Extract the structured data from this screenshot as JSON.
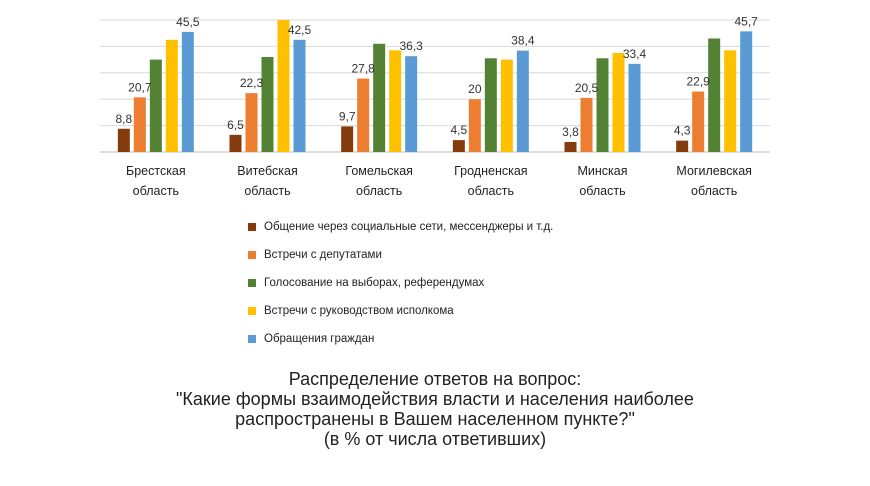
{
  "chart_data": {
    "type": "bar",
    "categories": [
      [
        "Брестская",
        "область"
      ],
      [
        "Витебская",
        "область"
      ],
      [
        "Гомельская",
        "область"
      ],
      [
        "Гродненская",
        "область"
      ],
      [
        "Минская",
        "область"
      ],
      [
        "Могилевская",
        "область"
      ]
    ],
    "series": [
      {
        "name": "Общение через социальные сети, мессенджеры и т.д.",
        "color": "#843c0c",
        "values": [
          8.8,
          6.5,
          9.7,
          4.5,
          3.8,
          4.3
        ],
        "labels": [
          "8,8",
          "6,5",
          "9,7",
          "4,5",
          "3,8",
          "4,3"
        ]
      },
      {
        "name": "Встречи с депутатами",
        "color": "#ed7d31",
        "values": [
          20.7,
          22.3,
          27.8,
          20,
          20.5,
          22.9
        ],
        "labels": [
          "20,7",
          "22,3",
          "27,8",
          "20",
          "20,5",
          "22,9"
        ]
      },
      {
        "name": "Голосование на выборах, референдумах",
        "color": "#548235",
        "values": [
          35,
          36,
          41,
          35.5,
          35.5,
          43
        ],
        "labels": [
          "",
          "",
          "",
          "",
          "",
          ""
        ]
      },
      {
        "name": "Встречи с руководством исполкома",
        "color": "#ffc000",
        "values": [
          42.5,
          50,
          38.5,
          35,
          37.5,
          38.5
        ],
        "labels": [
          "",
          "",
          "",
          "",
          "",
          ""
        ]
      },
      {
        "name": "Обращения граждан",
        "color": "#5b9bd5",
        "values": [
          45.5,
          42.5,
          36.3,
          38.4,
          33.4,
          45.7
        ],
        "labels": [
          "45,5",
          "42,5",
          "36,3",
          "38,4",
          "33,4",
          "45,7"
        ]
      }
    ],
    "ylim": [
      0,
      50
    ],
    "grid": true,
    "legend_position": "bottom",
    "xlabel": "",
    "ylabel": ""
  },
  "caption": [
    "Распределение ответов на вопрос:",
    "\"Какие формы взаимодействия власти и населения наиболее",
    "распространены в Вашем населенном пункте?\"",
    "(в % от числа ответивших)"
  ]
}
